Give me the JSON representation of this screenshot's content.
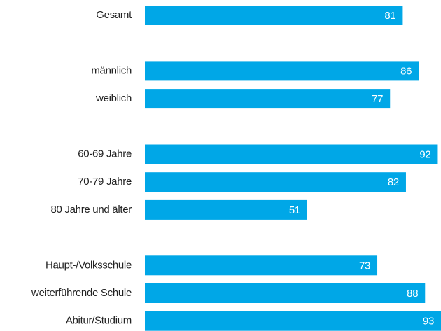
{
  "chart_data": {
    "type": "bar",
    "orientation": "horizontal",
    "categories": [
      "Gesamt",
      null,
      "männlich",
      "weiblich",
      null,
      "60-69 Jahre",
      "70-79 Jahre",
      "80 Jahre und älter",
      null,
      "Haupt-/Volksschule",
      "weiterführende Schule",
      "Abitur/Studium"
    ],
    "values": [
      81,
      null,
      86,
      77,
      null,
      92,
      82,
      51,
      null,
      73,
      88,
      93
    ],
    "color": "#00a7e7",
    "xlim": [
      0,
      93
    ]
  }
}
